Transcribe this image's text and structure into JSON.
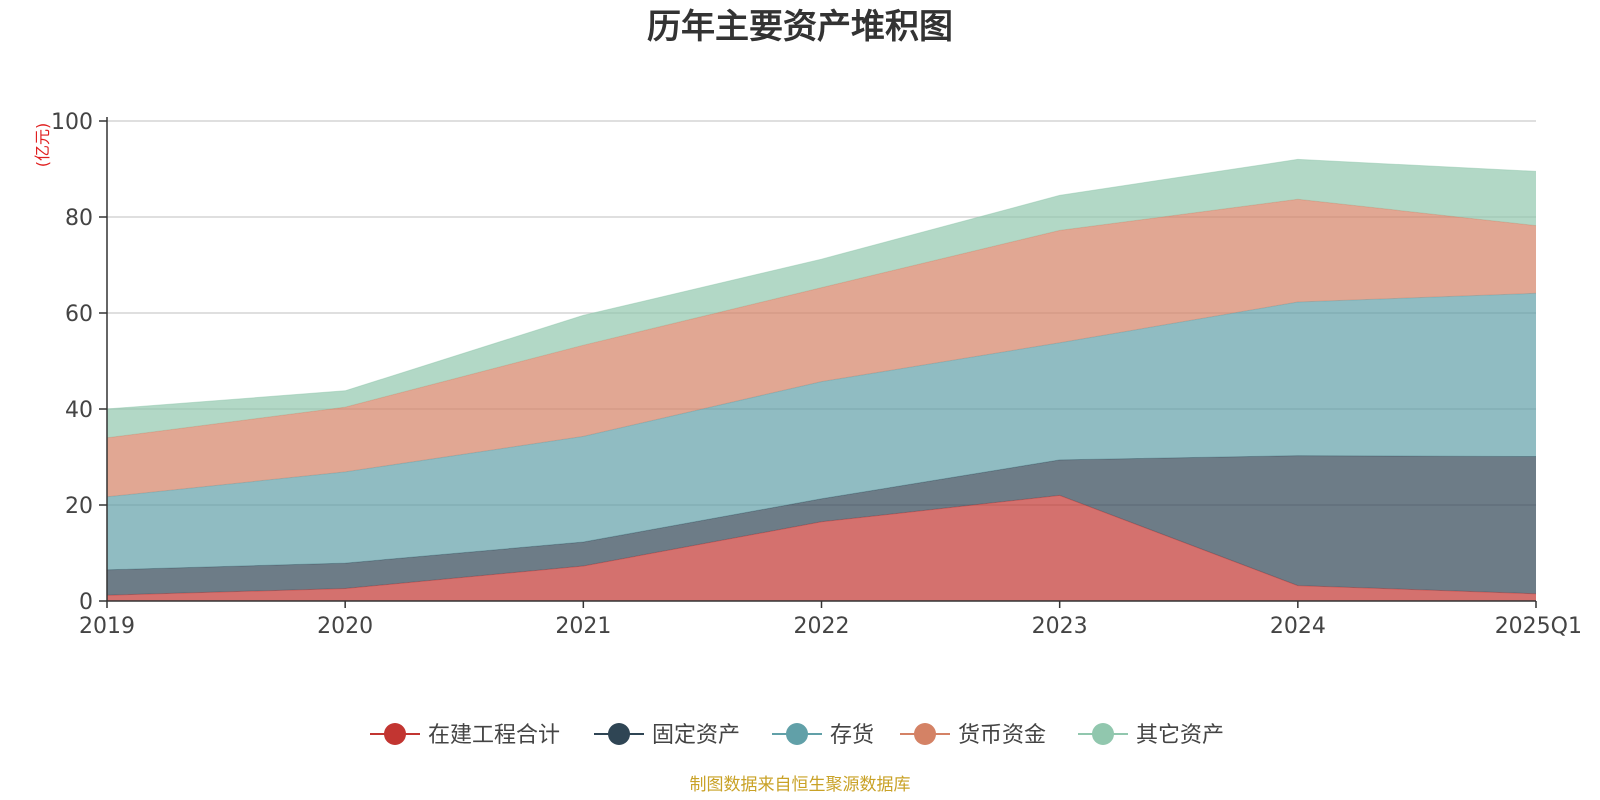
{
  "chart_data": {
    "type": "area",
    "stacked": true,
    "title": "历年主要资产堆积图",
    "unit": "(亿元)",
    "categories": [
      "2019",
      "2020",
      "2021",
      "2022",
      "2023",
      "2024",
      "2025Q1"
    ],
    "ylim": [
      0,
      100
    ],
    "yticks": [
      "0",
      "20",
      "40",
      "60",
      "80",
      "100"
    ],
    "grid": true,
    "legend_position": "bottom",
    "series": [
      {
        "name": "在建工程合计",
        "color": "#c23531",
        "values": [
          1.2,
          2.6,
          7.3,
          16.5,
          22.0,
          3.2,
          1.5
        ]
      },
      {
        "name": "固定资产",
        "color": "#2f4554",
        "values": [
          5.3,
          5.3,
          5.0,
          4.8,
          7.4,
          27.1,
          28.6
        ]
      },
      {
        "name": "存货",
        "color": "#61a0a8",
        "values": [
          15.2,
          19.0,
          22.0,
          24.4,
          24.4,
          32.0,
          34.0
        ]
      },
      {
        "name": "货币资金",
        "color": "#d48265",
        "values": [
          12.3,
          13.5,
          19.0,
          19.6,
          23.4,
          21.4,
          14.1
        ]
      },
      {
        "name": "其它资产",
        "color": "#91c7ae",
        "values": [
          6.0,
          3.4,
          6.2,
          5.9,
          7.3,
          8.3,
          11.3
        ]
      }
    ],
    "source": "制图数据来自恒生聚源数据库"
  }
}
